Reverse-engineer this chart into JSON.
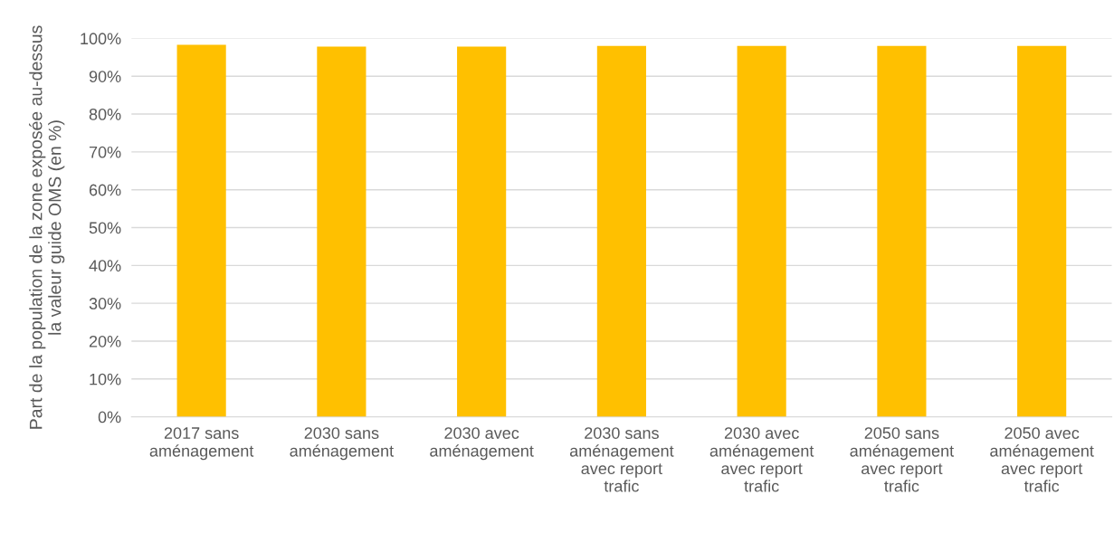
{
  "chart_data": {
    "type": "bar",
    "ylabel": "Part de la population de la zone exposée au-dessus la valeur guide OMS (en %)",
    "categories": [
      "2017 sans aménagement",
      "2030 sans aménagement",
      "2030 avec aménagement",
      "2030 sans aménagement avec report trafic",
      "2030 avec aménagement avec report trafic",
      "2050 sans aménagement avec report trafic",
      "2050 avec aménagement avec report trafic"
    ],
    "values": [
      98.3,
      97.8,
      97.8,
      98.0,
      98.0,
      98.0,
      98.0
    ],
    "color": "#ffc000",
    "ylim": [
      0,
      100
    ],
    "yticks": [
      {
        "value": 0,
        "label": "0%"
      },
      {
        "value": 10,
        "label": "10%"
      },
      {
        "value": 20,
        "label": "20%"
      },
      {
        "value": 30,
        "label": "30%"
      },
      {
        "value": 40,
        "label": "40%"
      },
      {
        "value": 50,
        "label": "50%"
      },
      {
        "value": 60,
        "label": "60%"
      },
      {
        "value": 70,
        "label": "70%"
      },
      {
        "value": 80,
        "label": "80%"
      },
      {
        "value": 90,
        "label": "90%"
      },
      {
        "value": 100,
        "label": "100%"
      }
    ],
    "grid": "y"
  }
}
